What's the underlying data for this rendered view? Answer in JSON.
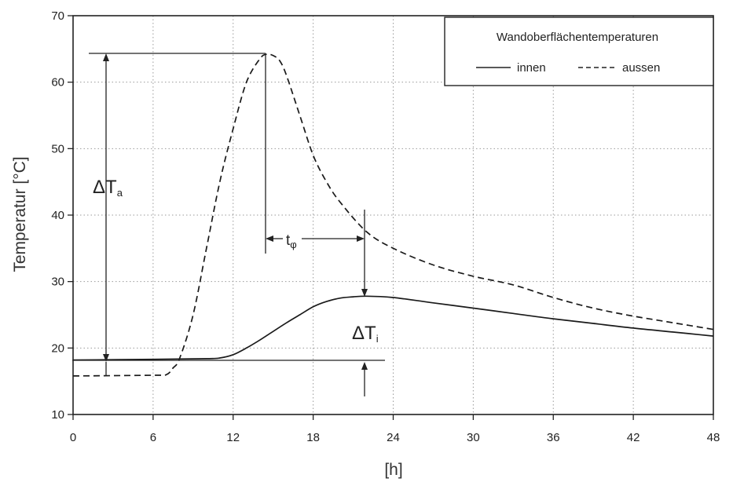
{
  "chart_data": {
    "type": "line",
    "title": "",
    "xlabel": "[h]",
    "ylabel": "Temperatur [°C]",
    "xlim": [
      0,
      48
    ],
    "ylim": [
      10,
      70
    ],
    "xticks": [
      0,
      6,
      12,
      18,
      24,
      30,
      36,
      42,
      48
    ],
    "yticks": [
      10,
      20,
      30,
      40,
      50,
      60,
      70
    ],
    "grid": true,
    "legend": {
      "title": "Wandoberflächentemperaturen",
      "placement": "top-right",
      "entries": [
        {
          "label": "innen",
          "style": "solid"
        },
        {
          "label": "aussen",
          "style": "dashed"
        }
      ]
    },
    "series": [
      {
        "name": "innen",
        "style": "solid",
        "points": [
          [
            0,
            18.2
          ],
          [
            6,
            18.3
          ],
          [
            10,
            18.4
          ],
          [
            11,
            18.5
          ],
          [
            12,
            19.0
          ],
          [
            13,
            20.0
          ],
          [
            14,
            21.2
          ],
          [
            15,
            22.5
          ],
          [
            16,
            23.8
          ],
          [
            17,
            25.0
          ],
          [
            18,
            26.2
          ],
          [
            19,
            27.0
          ],
          [
            20,
            27.5
          ],
          [
            21,
            27.7
          ],
          [
            22,
            27.8
          ],
          [
            24,
            27.6
          ],
          [
            27,
            26.8
          ],
          [
            30,
            26.0
          ],
          [
            33,
            25.2
          ],
          [
            36,
            24.4
          ],
          [
            39,
            23.7
          ],
          [
            42,
            23.0
          ],
          [
            45,
            22.4
          ],
          [
            48,
            21.8
          ]
        ]
      },
      {
        "name": "aussen",
        "style": "dashed",
        "points": [
          [
            0,
            15.8
          ],
          [
            6,
            15.9
          ],
          [
            7,
            16.0
          ],
          [
            7.5,
            17.0
          ],
          [
            8,
            18.5
          ],
          [
            9,
            25.0
          ],
          [
            10,
            35.0
          ],
          [
            11,
            45.0
          ],
          [
            12,
            53.0
          ],
          [
            13,
            60.0
          ],
          [
            14,
            63.5
          ],
          [
            14.5,
            64.2
          ],
          [
            15,
            64.0
          ],
          [
            15.5,
            63.2
          ],
          [
            16,
            61.0
          ],
          [
            17,
            55.0
          ],
          [
            18,
            49.0
          ],
          [
            19,
            45.0
          ],
          [
            20,
            42.0
          ],
          [
            22,
            37.5
          ],
          [
            24,
            35.0
          ],
          [
            27,
            32.5
          ],
          [
            30,
            30.8
          ],
          [
            33,
            29.5
          ],
          [
            36,
            27.6
          ],
          [
            39,
            26.0
          ],
          [
            42,
            24.8
          ],
          [
            45,
            23.8
          ],
          [
            48,
            22.8
          ]
        ]
      }
    ],
    "annotations": {
      "delta_a": {
        "main": "ΔT",
        "sub": "a"
      },
      "t_phi": {
        "main": "t",
        "sub": "φ"
      },
      "delta_i": {
        "main": "ΔT",
        "sub": "i"
      }
    }
  }
}
